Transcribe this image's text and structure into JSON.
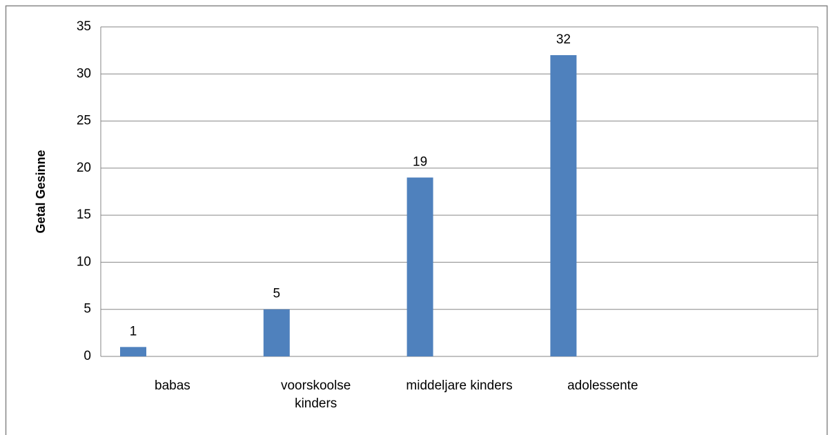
{
  "chart_data": {
    "type": "bar",
    "y_axis_label": "Getal Gesinne",
    "categories": [
      "babas",
      "voorskoolse\nkinders",
      "middeljare kinders",
      "adolessente",
      null
    ],
    "values": [
      1,
      5,
      19,
      32,
      null
    ],
    "color": "#4f81bd",
    "ylim": [
      0,
      35
    ],
    "yticks": [
      0,
      5,
      10,
      15,
      20,
      25,
      30,
      35
    ],
    "grid": true
  }
}
